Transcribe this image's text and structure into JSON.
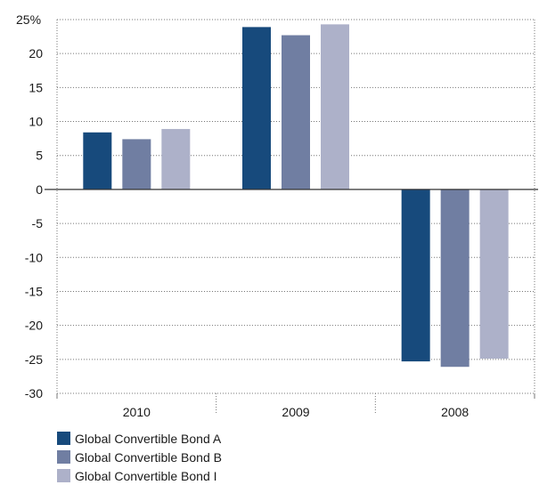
{
  "chart_data": {
    "type": "bar",
    "categories": [
      "2010",
      "2009",
      "2008"
    ],
    "series": [
      {
        "name": "Global Convertible Bond A",
        "color": "#174a7c",
        "values": [
          8.4,
          23.9,
          -25.3
        ]
      },
      {
        "name": "Global Convertible Bond B",
        "color": "#707ea2",
        "values": [
          7.4,
          22.7,
          -26.1
        ]
      },
      {
        "name": "Global Convertible Bond I",
        "color": "#adb1c9",
        "values": [
          8.9,
          24.3,
          -24.9
        ]
      }
    ],
    "yticks": [
      25,
      20,
      15,
      10,
      5,
      0,
      -5,
      -10,
      -15,
      -20,
      -25,
      -30
    ],
    "ytick_labels": [
      "25%",
      "20",
      "15",
      "10",
      "5",
      "0",
      "-5",
      "-10",
      "-15",
      "-20",
      "-25",
      "-30"
    ],
    "ylim": [
      -30,
      25
    ],
    "title": "",
    "xlabel": "",
    "ylabel": "",
    "grid": true,
    "legend_position": "bottom-left"
  }
}
